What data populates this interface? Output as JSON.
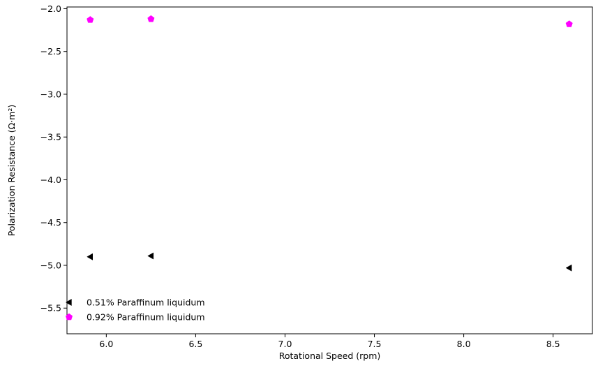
{
  "chart_data": {
    "type": "scatter",
    "xlabel": "Rotational Speed (rpm)",
    "ylabel": "Polarization Resistance (Ω·m²)",
    "xlim": [
      5.78,
      8.72
    ],
    "ylim": [
      -5.8,
      -1.98
    ],
    "xticks": [
      6.0,
      6.5,
      7.0,
      7.5,
      8.0,
      8.5
    ],
    "xtick_labels": [
      "6.0",
      "6.5",
      "7.0",
      "7.5",
      "8.0",
      "8.5"
    ],
    "yticks": [
      -2.0,
      -2.5,
      -3.0,
      -3.5,
      -4.0,
      -4.5,
      -5.0,
      -5.5
    ],
    "ytick_labels": [
      "−2.0",
      "−2.5",
      "−3.0",
      "−3.5",
      "−4.0",
      "−4.5",
      "−5.0",
      "−5.5"
    ],
    "grid": false,
    "legend_position": "lower-left",
    "series": [
      {
        "name": "0.51% Paraffinum liquidum",
        "marker": "triangle-left",
        "color": "#000000",
        "x": [
          5.91,
          6.25,
          8.59
        ],
        "y": [
          -4.9,
          -4.89,
          -5.03
        ]
      },
      {
        "name": "0.92% Paraffinum liquidum",
        "marker": "pentagon",
        "color": "#ff00ff",
        "x": [
          5.91,
          6.25,
          8.59
        ],
        "y": [
          -2.13,
          -2.12,
          -2.18
        ]
      }
    ]
  }
}
